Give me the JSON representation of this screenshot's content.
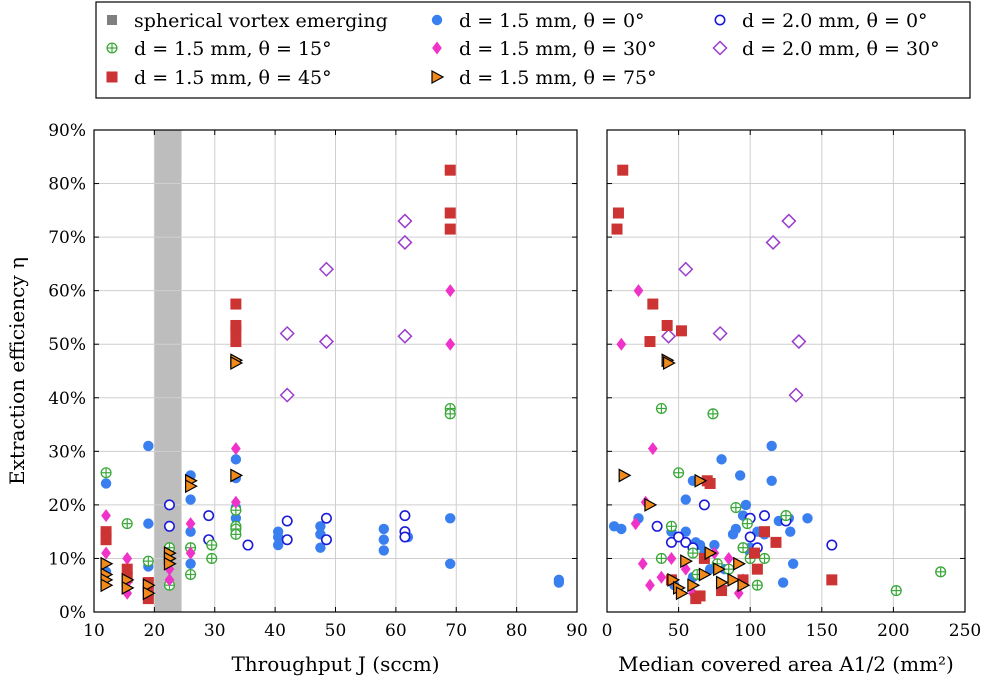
{
  "chart_data": [
    {
      "type": "scatter",
      "xlabel": "Throughput J (sccm)",
      "ylabel": "Extraction efficiency η",
      "xlim": [
        10,
        90
      ],
      "ylim": [
        0,
        90
      ],
      "x_ticks": [
        "10",
        "20",
        "30",
        "40",
        "50",
        "60",
        "70",
        "80",
        "90"
      ],
      "y_ticks": [
        "0%",
        "10%",
        "20%",
        "30%",
        "40%",
        "50%",
        "60%",
        "70%",
        "80%",
        "90%"
      ],
      "grid": true,
      "shaded_region": {
        "label": "spherical vortex emerging",
        "x_range": [
          20,
          24.5
        ]
      },
      "series": [
        {
          "name": "d = 1.5 mm, θ = 0°",
          "marker": "circle",
          "color": "#3a7ff0",
          "points": [
            [
              12,
              24
            ],
            [
              12,
              7.5
            ],
            [
              19,
              31
            ],
            [
              19,
              16.5
            ],
            [
              19,
              8.5
            ],
            [
              22.5,
              5
            ],
            [
              26,
              25.5
            ],
            [
              26,
              21
            ],
            [
              26,
              15
            ],
            [
              26,
              9
            ],
            [
              33.5,
              28.5
            ],
            [
              33.5,
              25
            ],
            [
              33.5,
              17.5
            ],
            [
              33.5,
              19.5
            ],
            [
              40.5,
              15
            ],
            [
              40.5,
              14
            ],
            [
              40.5,
              12.5
            ],
            [
              47.5,
              16
            ],
            [
              47.5,
              14.5
            ],
            [
              47.5,
              12
            ],
            [
              58,
              15.5
            ],
            [
              58,
              13.5
            ],
            [
              58,
              11.5
            ],
            [
              62,
              14
            ],
            [
              69,
              17.5
            ],
            [
              69,
              9
            ],
            [
              87,
              6
            ],
            [
              87,
              5.5
            ]
          ]
        },
        {
          "name": "d = 2.0 mm, θ = 0°",
          "marker": "open-circle",
          "color": "#1a1ad8",
          "points": [
            [
              22.5,
              20
            ],
            [
              22.5,
              16
            ],
            [
              29,
              18
            ],
            [
              29,
              13.5
            ],
            [
              35.5,
              12.5
            ],
            [
              42,
              17
            ],
            [
              42,
              13.5
            ],
            [
              48.5,
              17.5
            ],
            [
              48.5,
              13.5
            ],
            [
              61.5,
              18
            ],
            [
              61.5,
              15
            ],
            [
              61.5,
              14
            ]
          ]
        },
        {
          "name": "d = 1.5 mm, θ = 15°",
          "marker": "oplus",
          "color": "#3aa83a",
          "points": [
            [
              12,
              26
            ],
            [
              15.5,
              16.5
            ],
            [
              19,
              9.5
            ],
            [
              22.5,
              12
            ],
            [
              22.5,
              5
            ],
            [
              26,
              12
            ],
            [
              26,
              7
            ],
            [
              29.5,
              12.5
            ],
            [
              29.5,
              10
            ],
            [
              33.5,
              19
            ],
            [
              33.5,
              16
            ],
            [
              33.5,
              15.5
            ],
            [
              33.5,
              14.5
            ],
            [
              69,
              38
            ],
            [
              69,
              37
            ]
          ]
        },
        {
          "name": "d = 1.5 mm, θ = 30°",
          "marker": "diamond",
          "color": "#f033c8",
          "points": [
            [
              12,
              18
            ],
            [
              12,
              11
            ],
            [
              15.5,
              10
            ],
            [
              15.5,
              5.5
            ],
            [
              15.5,
              3.5
            ],
            [
              22.5,
              8
            ],
            [
              22.5,
              6
            ],
            [
              26,
              16.5
            ],
            [
              26,
              11
            ],
            [
              33.5,
              30.5
            ],
            [
              33.5,
              20.5
            ],
            [
              69,
              60
            ],
            [
              69,
              50
            ]
          ]
        },
        {
          "name": "d = 2.0 mm, θ = 30°",
          "marker": "open-diamond",
          "color": "#9a3ccc",
          "points": [
            [
              42,
              52
            ],
            [
              42,
              40.5
            ],
            [
              48.5,
              64
            ],
            [
              48.5,
              50.5
            ],
            [
              61.5,
              73
            ],
            [
              61.5,
              69
            ],
            [
              61.5,
              51.5
            ]
          ]
        },
        {
          "name": "d = 1.5 mm, θ = 45°",
          "marker": "square",
          "color": "#cc3333",
          "points": [
            [
              12,
              15
            ],
            [
              12,
              13.5
            ],
            [
              15.5,
              8
            ],
            [
              15.5,
              6.5
            ],
            [
              19,
              5.5
            ],
            [
              19,
              4
            ],
            [
              19,
              2.5
            ],
            [
              33.5,
              57.5
            ],
            [
              33.5,
              53.5
            ],
            [
              33.5,
              52.5
            ],
            [
              33.5,
              50.5
            ],
            [
              69,
              82.5
            ],
            [
              69,
              74.5
            ],
            [
              69,
              71.5
            ]
          ]
        },
        {
          "name": "d = 1.5 mm, θ = 75°",
          "marker": "triangle-right",
          "color": "#f08a1c",
          "points": [
            [
              12,
              9
            ],
            [
              12,
              7
            ],
            [
              12,
              6
            ],
            [
              12,
              5
            ],
            [
              15.5,
              6
            ],
            [
              15.5,
              4.5
            ],
            [
              19,
              5
            ],
            [
              19,
              3.5
            ],
            [
              22.5,
              11
            ],
            [
              22.5,
              10
            ],
            [
              22.5,
              9
            ],
            [
              26,
              24.5
            ],
            [
              26,
              23.5
            ],
            [
              33.5,
              47
            ],
            [
              33.5,
              46.5
            ],
            [
              33.5,
              25.5
            ]
          ]
        }
      ]
    },
    {
      "type": "scatter",
      "xlabel": "Median covered area A1/2 (mm²)",
      "xlim": [
        0,
        250
      ],
      "ylim": [
        0,
        90
      ],
      "x_ticks": [
        "0",
        "50",
        "100",
        "150",
        "200",
        "250"
      ],
      "grid": true,
      "series": [
        {
          "name": "d = 1.5 mm, θ = 0°",
          "marker": "circle",
          "color": "#3a7ff0",
          "points": [
            [
              5,
              16
            ],
            [
              10,
              15.5
            ],
            [
              22,
              17.5
            ],
            [
              45,
              15
            ],
            [
              55,
              15
            ],
            [
              55,
              21
            ],
            [
              60,
              24.5
            ],
            [
              62,
              13
            ],
            [
              65,
              12.5
            ],
            [
              68,
              11
            ],
            [
              72,
              8
            ],
            [
              75,
              12.5
            ],
            [
              80,
              28.5
            ],
            [
              82,
              8
            ],
            [
              88,
              14.5
            ],
            [
              90,
              15.5
            ],
            [
              93,
              25.5
            ],
            [
              95,
              18
            ],
            [
              97,
              20
            ],
            [
              100,
              12
            ],
            [
              100,
              11
            ],
            [
              105,
              15
            ],
            [
              110,
              14.5
            ],
            [
              115,
              31
            ],
            [
              115,
              24.5
            ],
            [
              120,
              17
            ],
            [
              123,
              5.5
            ],
            [
              127,
              17.5
            ],
            [
              128,
              15
            ],
            [
              130,
              9
            ],
            [
              140,
              17.5
            ],
            [
              47,
              5
            ],
            [
              60,
              6.5
            ]
          ]
        },
        {
          "name": "d = 2.0 mm, θ = 0°",
          "marker": "open-circle",
          "color": "#1a1ad8",
          "points": [
            [
              35,
              16
            ],
            [
              45,
              13
            ],
            [
              50,
              14
            ],
            [
              55,
              13
            ],
            [
              60,
              12
            ],
            [
              68,
              20
            ],
            [
              100,
              17.5
            ],
            [
              100,
              14
            ],
            [
              105,
              12
            ],
            [
              110,
              18
            ],
            [
              125,
              17
            ],
            [
              157,
              12.5
            ]
          ]
        },
        {
          "name": "d = 1.5 mm, θ = 15°",
          "marker": "oplus",
          "color": "#3aa83a",
          "points": [
            [
              38,
              38
            ],
            [
              38,
              10
            ],
            [
              45,
              16
            ],
            [
              50,
              26
            ],
            [
              60,
              11
            ],
            [
              63,
              7
            ],
            [
              74,
              37
            ],
            [
              77,
              9
            ],
            [
              85,
              8
            ],
            [
              90,
              19.5
            ],
            [
              95,
              12
            ],
            [
              98,
              16.5
            ],
            [
              100,
              10
            ],
            [
              105,
              5
            ],
            [
              110,
              10
            ],
            [
              125,
              18
            ],
            [
              202,
              4
            ],
            [
              233,
              7.5
            ]
          ]
        },
        {
          "name": "d = 1.5 mm, θ = 30°",
          "marker": "diamond",
          "color": "#f033c8",
          "points": [
            [
              10,
              50
            ],
            [
              22,
              60
            ],
            [
              20,
              16.5
            ],
            [
              25,
              9
            ],
            [
              27,
              20.5
            ],
            [
              30,
              5
            ],
            [
              32,
              30.5
            ],
            [
              38,
              6.5
            ],
            [
              45,
              10
            ],
            [
              55,
              8
            ],
            [
              60,
              3.5
            ],
            [
              75,
              11
            ],
            [
              85,
              10
            ],
            [
              92,
              3.5
            ],
            [
              95,
              6
            ]
          ]
        },
        {
          "name": "d = 2.0 mm, θ = 30°",
          "marker": "open-diamond",
          "color": "#9a3ccc",
          "points": [
            [
              43,
              51.5
            ],
            [
              55,
              64
            ],
            [
              79,
              52
            ],
            [
              116,
              69
            ],
            [
              127,
              73
            ],
            [
              132,
              40.5
            ],
            [
              134,
              50.5
            ]
          ]
        },
        {
          "name": "d = 1.5 mm, θ = 45°",
          "marker": "square",
          "color": "#cc3333",
          "points": [
            [
              7,
              71.5
            ],
            [
              8,
              74.5
            ],
            [
              11,
              82.5
            ],
            [
              30,
              50.5
            ],
            [
              32,
              57.5
            ],
            [
              42,
              53.5
            ],
            [
              52,
              52.5
            ],
            [
              45,
              6
            ],
            [
              62,
              2.5
            ],
            [
              65,
              3
            ],
            [
              68,
              10
            ],
            [
              70,
              24.5
            ],
            [
              72,
              24
            ],
            [
              80,
              4
            ],
            [
              95,
              6
            ],
            [
              103,
              11
            ],
            [
              105,
              8
            ],
            [
              110,
              15
            ],
            [
              118,
              13
            ],
            [
              157,
              6
            ]
          ]
        },
        {
          "name": "d = 1.5 mm, θ = 75°",
          "marker": "triangle-right",
          "color": "#f08a1c",
          "points": [
            [
              12,
              25.5
            ],
            [
              30,
              20
            ],
            [
              42,
              47
            ],
            [
              43,
              46.5
            ],
            [
              46,
              6
            ],
            [
              50,
              4.5
            ],
            [
              52,
              3.5
            ],
            [
              55,
              9.5
            ],
            [
              60,
              5
            ],
            [
              65,
              24.5
            ],
            [
              68,
              7
            ],
            [
              72,
              11
            ],
            [
              78,
              8
            ],
            [
              80,
              5.5
            ],
            [
              88,
              6
            ],
            [
              92,
              9
            ],
            [
              95,
              5
            ]
          ]
        }
      ]
    }
  ],
  "legend": {
    "entries": [
      {
        "marker": "gray-rect",
        "color": "#808080",
        "label": "spherical vortex emerging"
      },
      {
        "marker": "circle",
        "color": "#3a7ff0",
        "label": "d = 1.5 mm, θ =   0°"
      },
      {
        "marker": "open-circle",
        "color": "#1a1ad8",
        "label": "d = 2.0 mm, θ =   0°"
      },
      {
        "marker": "oplus",
        "color": "#3aa83a",
        "label": "d = 1.5 mm, θ = 15°"
      },
      {
        "marker": "diamond",
        "color": "#f033c8",
        "label": "d = 1.5 mm, θ = 30°"
      },
      {
        "marker": "open-diamond",
        "color": "#9a3ccc",
        "label": "d = 2.0 mm, θ = 30°"
      },
      {
        "marker": "square",
        "color": "#cc3333",
        "label": "d = 1.5 mm, θ = 45°"
      },
      {
        "marker": "triangle-right",
        "color": "#f08a1c",
        "label": "d = 1.5 mm, θ = 75°"
      }
    ]
  }
}
